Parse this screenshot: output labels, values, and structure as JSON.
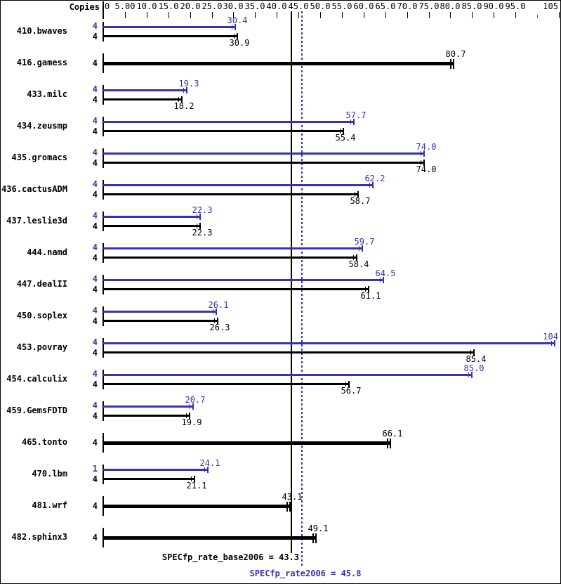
{
  "header": {
    "copies_label": "Copies"
  },
  "colors": {
    "peak": "#3333b3",
    "base": "#000000",
    "background": "#ffffff",
    "border": "#000000",
    "minor_tick": "#666666"
  },
  "chart_data": {
    "type": "bar",
    "orientation": "horizontal",
    "xlabel": "",
    "ylabel": "",
    "axis": {
      "min": 0,
      "max": 105,
      "ticks": [
        {
          "v": 0,
          "label": "0"
        },
        {
          "v": 5,
          "label": "5.00"
        },
        {
          "v": 10,
          "label": "10.0"
        },
        {
          "v": 15,
          "label": "15.0"
        },
        {
          "v": 20,
          "label": "20.0"
        },
        {
          "v": 25,
          "label": "25.0"
        },
        {
          "v": 30,
          "label": "30.0"
        },
        {
          "v": 35,
          "label": "35.0"
        },
        {
          "v": 40,
          "label": "40.0"
        },
        {
          "v": 45,
          "label": "45.0"
        },
        {
          "v": 50,
          "label": "50.0"
        },
        {
          "v": 55,
          "label": "55.0"
        },
        {
          "v": 60,
          "label": "60.0"
        },
        {
          "v": 65,
          "label": "65.0"
        },
        {
          "v": 70,
          "label": "70.0"
        },
        {
          "v": 75,
          "label": "75.0"
        },
        {
          "v": 80,
          "label": "80.0"
        },
        {
          "v": 85,
          "label": "85.0"
        },
        {
          "v": 90,
          "label": "90.0"
        },
        {
          "v": 95,
          "label": "95.0"
        },
        {
          "v": 100,
          "label": ""
        },
        {
          "v": 105,
          "label": "105"
        }
      ]
    },
    "benchmarks": [
      {
        "name": "410.bwaves",
        "bars": [
          {
            "series": "peak",
            "copies": "4",
            "value": 30.4,
            "label": "30.4"
          },
          {
            "series": "base",
            "copies": "4",
            "value": 30.9,
            "label": "30.9"
          }
        ]
      },
      {
        "name": "416.gamess",
        "bars": [
          {
            "series": "base-only",
            "copies": "4",
            "value": 80.7,
            "label": "80.7"
          }
        ]
      },
      {
        "name": "433.milc",
        "bars": [
          {
            "series": "peak",
            "copies": "4",
            "value": 19.3,
            "label": "19.3"
          },
          {
            "series": "base",
            "copies": "4",
            "value": 18.2,
            "label": "18.2"
          }
        ]
      },
      {
        "name": "434.zeusmp",
        "bars": [
          {
            "series": "peak",
            "copies": "4",
            "value": 57.7,
            "label": "57.7"
          },
          {
            "series": "base",
            "copies": "4",
            "value": 55.4,
            "label": "55.4"
          }
        ]
      },
      {
        "name": "435.gromacs",
        "bars": [
          {
            "series": "peak",
            "copies": "4",
            "value": 74.0,
            "label": "74.0"
          },
          {
            "series": "base",
            "copies": "4",
            "value": 74.0,
            "label": "74.0"
          }
        ]
      },
      {
        "name": "436.cactusADM",
        "bars": [
          {
            "series": "peak",
            "copies": "4",
            "value": 62.2,
            "label": "62.2"
          },
          {
            "series": "base",
            "copies": "4",
            "value": 58.7,
            "label": "58.7"
          }
        ]
      },
      {
        "name": "437.leslie3d",
        "bars": [
          {
            "series": "peak",
            "copies": "4",
            "value": 22.3,
            "label": "22.3"
          },
          {
            "series": "base",
            "copies": "4",
            "value": 22.3,
            "label": "22.3"
          }
        ]
      },
      {
        "name": "444.namd",
        "bars": [
          {
            "series": "peak",
            "copies": "4",
            "value": 59.7,
            "label": "59.7"
          },
          {
            "series": "base",
            "copies": "4",
            "value": 58.4,
            "label": "58.4"
          }
        ]
      },
      {
        "name": "447.dealII",
        "bars": [
          {
            "series": "peak",
            "copies": "4",
            "value": 64.5,
            "label": "64.5"
          },
          {
            "series": "base",
            "copies": "4",
            "value": 61.1,
            "label": "61.1"
          }
        ]
      },
      {
        "name": "450.soplex",
        "bars": [
          {
            "series": "peak",
            "copies": "4",
            "value": 26.1,
            "label": "26.1"
          },
          {
            "series": "base",
            "copies": "4",
            "value": 26.3,
            "label": "26.3"
          }
        ]
      },
      {
        "name": "453.povray",
        "bars": [
          {
            "series": "peak",
            "copies": "4",
            "value": 104,
            "label": "104"
          },
          {
            "series": "base",
            "copies": "4",
            "value": 85.4,
            "label": "85.4"
          }
        ]
      },
      {
        "name": "454.calculix",
        "bars": [
          {
            "series": "peak",
            "copies": "4",
            "value": 85.0,
            "label": "85.0"
          },
          {
            "series": "base",
            "copies": "4",
            "value": 56.7,
            "label": "56.7"
          }
        ]
      },
      {
        "name": "459.GemsFDTD",
        "bars": [
          {
            "series": "peak",
            "copies": "4",
            "value": 20.7,
            "label": "20.7"
          },
          {
            "series": "base",
            "copies": "4",
            "value": 19.9,
            "label": "19.9"
          }
        ]
      },
      {
        "name": "465.tonto",
        "bars": [
          {
            "series": "base-only",
            "copies": "4",
            "value": 66.1,
            "label": "66.1"
          }
        ]
      },
      {
        "name": "470.lbm",
        "bars": [
          {
            "series": "peak",
            "copies": "1",
            "value": 24.1,
            "label": "24.1"
          },
          {
            "series": "base",
            "copies": "4",
            "value": 21.1,
            "label": "21.1"
          }
        ]
      },
      {
        "name": "481.wrf",
        "bars": [
          {
            "series": "base-only",
            "copies": "4",
            "value": 43.1,
            "label": "43.1"
          }
        ]
      },
      {
        "name": "482.sphinx3",
        "bars": [
          {
            "series": "base-only",
            "copies": "4",
            "value": 49.1,
            "label": "49.1"
          }
        ]
      }
    ],
    "reference_lines": [
      {
        "name": "base",
        "value": 43.3,
        "style": "solid"
      },
      {
        "name": "peak",
        "value": 45.8,
        "style": "dotted"
      }
    ],
    "summary": {
      "base_text": "SPECfp_rate_base2006 = 43.3",
      "peak_text": "SPECfp_rate2006 = 45.8",
      "base_value": 43.3,
      "peak_value": 45.8
    }
  }
}
